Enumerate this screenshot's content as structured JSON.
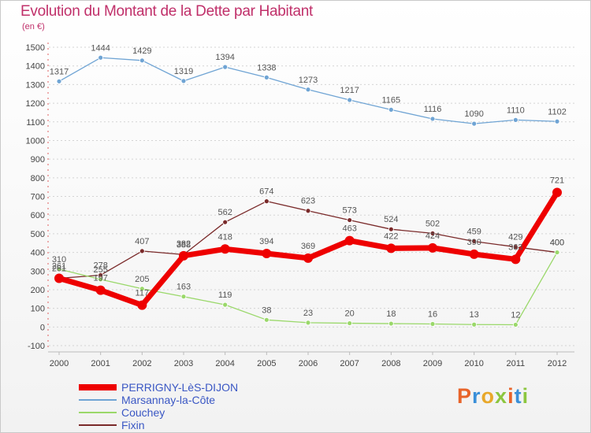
{
  "header": {
    "title": "Evolution du Montant de la Dette par Habitant",
    "subtitle": "(en €)"
  },
  "brand": {
    "text": "Proxiti",
    "colors": [
      "#e8642a",
      "#3a8fd8",
      "#e8a82a",
      "#8cc63f",
      "#e8642a",
      "#3a8fd8",
      "#8cc63f"
    ]
  },
  "chart_data": {
    "type": "line",
    "title": "Evolution du Montant de la Dette par Habitant",
    "subtitle": "(en €)",
    "xlabel": "",
    "ylabel": "",
    "x": [
      "2000",
      "2001",
      "2002",
      "2003",
      "2004",
      "2005",
      "2006",
      "2007",
      "2008",
      "2009",
      "2010",
      "2011",
      "2012"
    ],
    "ylim": [
      -100,
      1500
    ],
    "yticks": [
      -100,
      0,
      100,
      200,
      300,
      400,
      500,
      600,
      700,
      800,
      900,
      1000,
      1100,
      1200,
      1300,
      1400,
      1500
    ],
    "grid": "horizontal dotted",
    "legend_position": "bottom-left",
    "series": [
      {
        "name": "PERRIGNY-LèS-DIJON",
        "color": "#ee0000",
        "width": 7,
        "labels": [
          "261",
          "197",
          "117",
          "382",
          "418",
          "394",
          "369",
          "463",
          "422",
          "424",
          "390",
          "363",
          "721"
        ],
        "values": [
          261,
          197,
          117,
          382,
          418,
          394,
          369,
          463,
          422,
          424,
          390,
          363,
          721
        ]
      },
      {
        "name": "Marsannay-la-Côte",
        "color": "#6fa4d4",
        "width": 1.3,
        "labels": [
          "1317",
          "1444",
          "1429",
          "1319",
          "1394",
          "1338",
          "1273",
          "1217",
          "1165",
          "1116",
          "1090",
          "1110",
          "1102"
        ],
        "values": [
          1317,
          1444,
          1429,
          1319,
          1394,
          1338,
          1273,
          1217,
          1165,
          1116,
          1090,
          1110,
          1102
        ]
      },
      {
        "name": "Couchey",
        "color": "#9ad86a",
        "width": 1.3,
        "labels": [
          "310",
          "255",
          "205",
          "163",
          "119",
          "38",
          "23",
          "20",
          "18",
          "16",
          "13",
          "12",
          "400"
        ],
        "values": [
          310,
          255,
          205,
          163,
          119,
          38,
          23,
          20,
          18,
          16,
          13,
          12,
          400
        ]
      },
      {
        "name": "Fixin",
        "color": "#7a2a2a",
        "width": 1.3,
        "labels": [
          "261",
          "278",
          "407",
          "388",
          "562",
          "674",
          "623",
          "573",
          "524",
          "502",
          "459",
          "429",
          "400"
        ],
        "values": [
          261,
          278,
          407,
          388,
          562,
          674,
          623,
          573,
          524,
          502,
          459,
          429,
          400
        ]
      }
    ]
  }
}
